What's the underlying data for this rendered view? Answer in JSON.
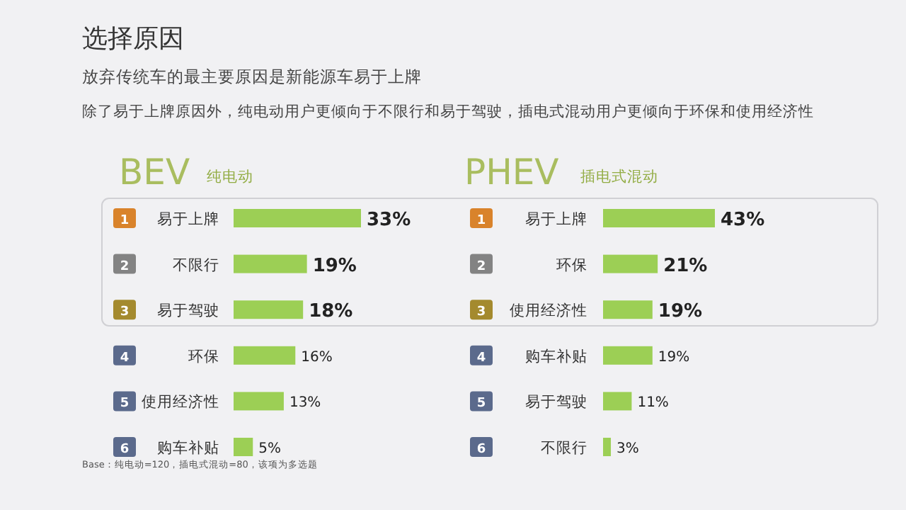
{
  "chart_data": [
    {
      "type": "other",
      "title": "选择原因",
      "annotations": [
        "放弃传统车的最主要原因是新能源车易于上牌",
        "除了易于上牌原因外，纯电动用户更倾向于不限行和易于驾驶，插电式混动用户更倾向于环保和使用经济性",
        "Base：纯电动=120，插电式混动=80，该项为多选题"
      ]
    },
    {
      "type": "bar",
      "orientation": "horizontal",
      "title": "BEV",
      "subtitle": "纯电动",
      "categories": [
        "易于上牌",
        "不限行",
        "易于驾驶",
        "环保",
        "使用经济性",
        "购车补贴"
      ],
      "values": [
        33,
        19,
        18,
        16,
        13,
        5
      ],
      "value_labels": [
        "33%",
        "19%",
        "18%",
        "16%",
        "13%",
        "5%"
      ],
      "color": "#9ccf55",
      "annotations": [
        "1",
        "2",
        "3",
        "4",
        "5",
        "6"
      ]
    },
    {
      "type": "bar",
      "orientation": "horizontal",
      "title": "PHEV",
      "subtitle": "插电式混动",
      "categories": [
        "易于上牌",
        "环保",
        "使用经济性",
        "购车补贴",
        "易于驾驶",
        "不限行"
      ],
      "values": [
        43,
        21,
        19,
        19,
        11,
        3
      ],
      "value_labels": [
        "43%",
        "21%",
        "19%",
        "19%",
        "11%",
        "3%"
      ],
      "color": "#9ccf55",
      "annotations": [
        "1",
        "2",
        "3",
        "4",
        "5",
        "6"
      ]
    }
  ]
}
